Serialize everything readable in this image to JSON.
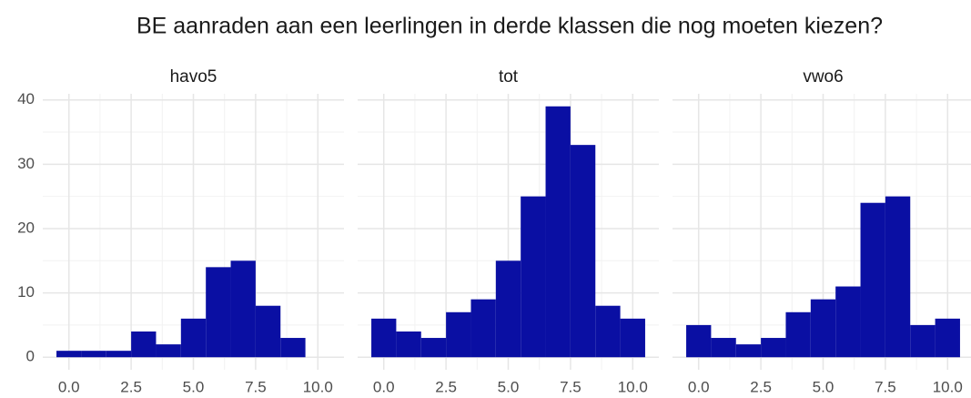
{
  "title": "BE aanraden aan een leerlingen in derde klassen die nog moeten kiezen?",
  "chart_data": [
    {
      "type": "histogram",
      "title": "havo5",
      "color": "#0a0fa3",
      "bins": [
        -0.5,
        0.5,
        1.5,
        2.5,
        3.5,
        4.5,
        5.5,
        6.5,
        7.5,
        8.5,
        9.5,
        10.5
      ],
      "values": [
        1,
        1,
        1,
        4,
        2,
        6,
        14,
        15,
        8,
        3,
        0
      ],
      "xlim": [
        -1.05,
        11.05
      ],
      "ylim": [
        -1.95,
        40.95
      ],
      "xticks": [
        {
          "value": 0,
          "label": "0.0"
        },
        {
          "value": 2.5,
          "label": "2.5"
        },
        {
          "value": 5,
          "label": "5.0"
        },
        {
          "value": 7.5,
          "label": "7.5"
        },
        {
          "value": 10,
          "label": "10.0"
        }
      ],
      "yticks": [
        0,
        10,
        20,
        30,
        40
      ],
      "grid": true
    },
    {
      "type": "histogram",
      "title": "tot",
      "color": "#0a0fa3",
      "bins": [
        -0.5,
        0.5,
        1.5,
        2.5,
        3.5,
        4.5,
        5.5,
        6.5,
        7.5,
        8.5,
        9.5,
        10.5
      ],
      "values": [
        6,
        4,
        3,
        7,
        9,
        15,
        25,
        39,
        33,
        8,
        6
      ],
      "xlim": [
        -1.05,
        11.05
      ],
      "ylim": [
        -1.95,
        40.95
      ],
      "xticks": [
        {
          "value": 0,
          "label": "0.0"
        },
        {
          "value": 2.5,
          "label": "2.5"
        },
        {
          "value": 5,
          "label": "5.0"
        },
        {
          "value": 7.5,
          "label": "7.5"
        },
        {
          "value": 10,
          "label": "10.0"
        }
      ],
      "yticks": [
        0,
        10,
        20,
        30,
        40
      ],
      "grid": true
    },
    {
      "type": "histogram",
      "title": "vwo6",
      "color": "#0a0fa3",
      "bins": [
        -0.5,
        0.5,
        1.5,
        2.5,
        3.5,
        4.5,
        5.5,
        6.5,
        7.5,
        8.5,
        9.5,
        10.5
      ],
      "values": [
        5,
        3,
        2,
        3,
        7,
        9,
        11,
        24,
        25,
        5,
        6
      ],
      "xlim": [
        -1.05,
        11.05
      ],
      "ylim": [
        -1.95,
        40.95
      ],
      "xticks": [
        {
          "value": 0,
          "label": "0.0"
        },
        {
          "value": 2.5,
          "label": "2.5"
        },
        {
          "value": 5,
          "label": "5.0"
        },
        {
          "value": 7.5,
          "label": "7.5"
        },
        {
          "value": 10,
          "label": "10.0"
        }
      ],
      "yticks": [
        0,
        10,
        20,
        30,
        40
      ],
      "grid": true
    }
  ]
}
